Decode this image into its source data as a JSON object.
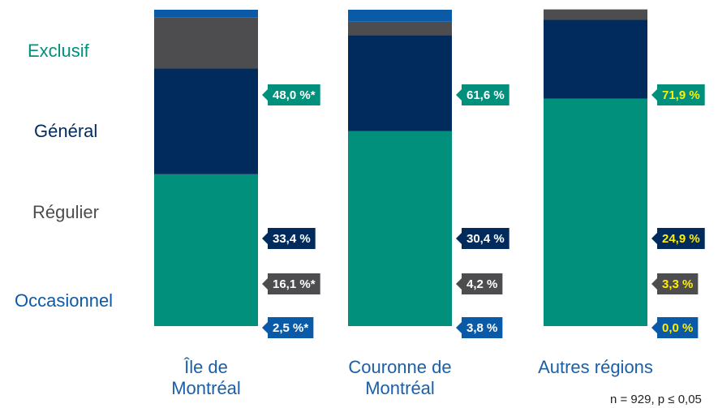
{
  "chart_data": {
    "type": "stacked-bar",
    "categories": [
      "Île de Montréal",
      "Couronne de Montréal",
      "Autres régions"
    ],
    "series": [
      {
        "name": "Exclusif",
        "color": "#00907c",
        "values": [
          48.0,
          61.6,
          71.9
        ],
        "value_labels": [
          "48,0 %*",
          "61,6 %",
          "71,9 %"
        ]
      },
      {
        "name": "Général",
        "color": "#002b5c",
        "values": [
          33.4,
          30.4,
          24.9
        ],
        "value_labels": [
          "33,4 %",
          "30,4 %",
          "24,9 %"
        ]
      },
      {
        "name": "Régulier",
        "color": "#4d4d4f",
        "values": [
          16.1,
          4.2,
          3.3
        ],
        "value_labels": [
          "16,1 %*",
          "4,2 %",
          "3,3 %"
        ]
      },
      {
        "name": "Occasionnel",
        "color": "#0b5aa8",
        "values": [
          2.5,
          3.8,
          0.0
        ],
        "value_labels": [
          "2,5 %*",
          "3,8 %",
          "0,0 %"
        ]
      }
    ],
    "label_text_colors": [
      "#ffffff",
      "#ffffff",
      "#ffef00"
    ],
    "ylim": [
      0,
      100
    ],
    "note": "n = 929, p ≤ 0,05"
  }
}
